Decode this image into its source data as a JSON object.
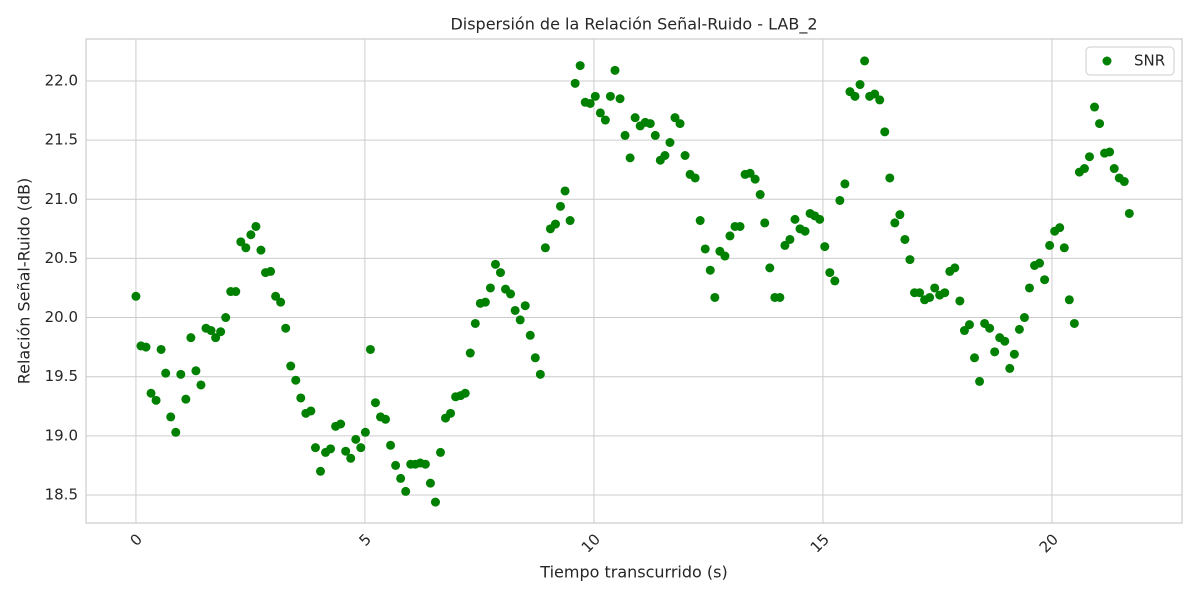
{
  "chart_data": {
    "type": "scatter",
    "title": "Dispersión de la Relación Señal-Ruido - LAB_2",
    "xlabel": "Tiempo transcurrido (s)",
    "ylabel": "Relación Señal-Ruido (dB)",
    "xlim": [
      -1.09,
      22.84
    ],
    "ylim": [
      18.263,
      22.355
    ],
    "xticks": [
      0,
      5,
      10,
      15,
      20
    ],
    "yticks": [
      18.5,
      {
        "value": 19.0,
        "label": "19.0"
      },
      19.5,
      {
        "value": 20.0,
        "label": "20.0"
      },
      20.5,
      {
        "value": 21.0,
        "label": "21.0"
      },
      21.5,
      {
        "value": 22.0,
        "label": "22.0"
      }
    ],
    "grid": true,
    "legend": "upper right",
    "series": [
      {
        "name": "SNR",
        "color": "#008000",
        "x": [
          0,
          0.11,
          0.22,
          0.33,
          0.44,
          0.55,
          0.65,
          0.76,
          0.87,
          0.98,
          1.09,
          1.2,
          1.31,
          1.42,
          1.53,
          1.64,
          1.74,
          1.85,
          1.96,
          2.07,
          2.18,
          2.29,
          2.4,
          2.51,
          2.62,
          2.73,
          2.83,
          2.94,
          3.05,
          3.16,
          3.27,
          3.38,
          3.49,
          3.6,
          3.71,
          3.82,
          3.92,
          4.03,
          4.14,
          4.25,
          4.36,
          4.47,
          4.58,
          4.69,
          4.8,
          4.91,
          5.01,
          5.12,
          5.23,
          5.34,
          5.45,
          5.56,
          5.67,
          5.78,
          5.89,
          6.0,
          6.1,
          6.21,
          6.32,
          6.43,
          6.54,
          6.65,
          6.76,
          6.87,
          6.98,
          7.09,
          7.19,
          7.3,
          7.41,
          7.52,
          7.63,
          7.74,
          7.85,
          7.96,
          8.07,
          8.18,
          8.28,
          8.39,
          8.5,
          8.61,
          8.72,
          8.83,
          8.94,
          9.05,
          9.16,
          9.27,
          9.37,
          9.48,
          9.59,
          9.7,
          9.81,
          9.92,
          10.03,
          10.14,
          10.25,
          10.36,
          10.46,
          10.57,
          10.68,
          10.79,
          10.9,
          11.01,
          11.12,
          11.23,
          11.34,
          11.45,
          11.55,
          11.66,
          11.77,
          11.88,
          11.99,
          12.1,
          12.21,
          12.32,
          12.43,
          12.54,
          12.64,
          12.75,
          12.86,
          12.97,
          13.08,
          13.19,
          13.3,
          13.41,
          13.52,
          13.63,
          13.73,
          13.84,
          13.95,
          14.06,
          14.17,
          14.28,
          14.39,
          14.5,
          14.61,
          14.72,
          14.82,
          14.93,
          15.04,
          15.15,
          15.26,
          15.37,
          15.48,
          15.59,
          15.7,
          15.81,
          15.91,
          16.02,
          16.13,
          16.24,
          16.35,
          16.46,
          16.57,
          16.68,
          16.79,
          16.9,
          17.0,
          17.11,
          17.22,
          17.33,
          17.44,
          17.55,
          17.66,
          17.77,
          17.88,
          17.99,
          18.09,
          18.2,
          18.31,
          18.42,
          18.53,
          18.64,
          18.75,
          18.86,
          18.97,
          19.08,
          19.18,
          19.29,
          19.4,
          19.51,
          19.62,
          19.73,
          19.84,
          19.95,
          20.06,
          20.17,
          20.27,
          20.38,
          20.49,
          20.6,
          20.71,
          20.82,
          20.93,
          21.04,
          21.15,
          21.26,
          21.36,
          21.47,
          21.58,
          21.69
        ],
        "values": [
          20.18,
          19.76,
          19.75,
          19.36,
          19.3,
          19.73,
          19.53,
          19.16,
          19.03,
          19.52,
          19.31,
          19.83,
          19.55,
          19.43,
          19.91,
          19.89,
          19.83,
          19.88,
          20.0,
          20.22,
          20.22,
          20.64,
          20.59,
          20.7,
          20.77,
          20.57,
          20.38,
          20.39,
          20.18,
          20.13,
          19.91,
          19.59,
          19.47,
          19.32,
          19.19,
          19.21,
          18.9,
          18.7,
          18.86,
          18.89,
          19.08,
          19.1,
          18.87,
          18.81,
          18.97,
          18.9,
          19.03,
          19.73,
          19.28,
          19.16,
          19.14,
          18.92,
          18.75,
          18.64,
          18.53,
          18.76,
          18.76,
          18.77,
          18.76,
          18.6,
          18.44,
          18.86,
          19.15,
          19.19,
          19.33,
          19.34,
          19.36,
          19.7,
          19.95,
          20.12,
          20.13,
          20.25,
          20.45,
          20.38,
          20.24,
          20.2,
          20.06,
          19.98,
          20.1,
          19.85,
          19.66,
          19.52,
          20.59,
          20.75,
          20.79,
          20.94,
          21.07,
          20.82,
          21.98,
          22.13,
          21.82,
          21.81,
          21.87,
          21.73,
          21.67,
          21.87,
          22.09,
          21.85,
          21.54,
          21.35,
          21.69,
          21.62,
          21.65,
          21.64,
          21.54,
          21.33,
          21.37,
          21.48,
          21.69,
          21.64,
          21.37,
          21.21,
          21.18,
          20.82,
          20.58,
          20.4,
          20.17,
          20.56,
          20.52,
          20.69,
          20.77,
          20.77,
          21.21,
          21.22,
          21.17,
          21.04,
          20.8,
          20.42,
          20.17,
          20.17,
          20.61,
          20.66,
          20.83,
          20.75,
          20.73,
          20.88,
          20.86,
          20.83,
          20.6,
          20.38,
          20.31,
          20.99,
          21.13,
          21.91,
          21.87,
          21.97,
          22.17,
          21.87,
          21.89,
          21.84,
          21.57,
          21.18,
          20.8,
          20.87,
          20.66,
          20.49,
          20.21,
          20.21,
          20.15,
          20.17,
          20.25,
          20.19,
          20.21,
          20.39,
          20.42,
          20.14,
          19.89,
          19.94,
          19.66,
          19.46,
          19.95,
          19.91,
          19.71,
          19.83,
          19.8,
          19.57,
          19.69,
          19.9,
          20.0,
          20.25,
          20.44,
          20.46,
          20.32,
          20.61,
          20.73,
          20.76,
          20.59,
          20.15,
          19.95,
          21.23,
          21.26,
          21.36,
          21.78,
          21.64,
          21.39,
          21.4,
          21.26,
          21.18,
          21.15,
          20.88
        ]
      }
    ]
  }
}
